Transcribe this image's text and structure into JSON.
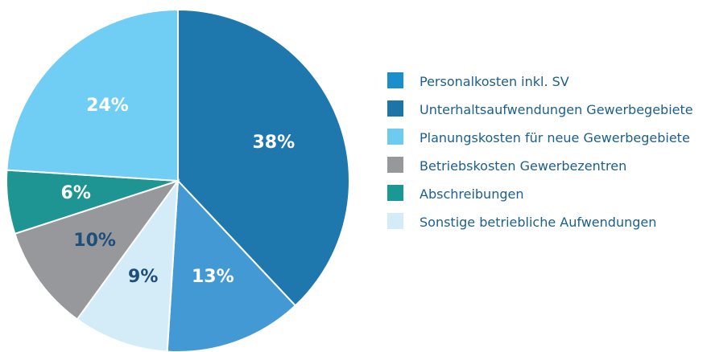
{
  "chart_data": {
    "type": "pie",
    "categories": [
      "Unterhaltsaufwendungen Gewerbegebiete",
      "Personalkosten inkl. SV",
      "Sonstige betriebliche Aufwendungen",
      "Betriebskosten Gewerbezentren",
      "Abschreibungen",
      "Planungskosten für neue Gewerbegebiete"
    ],
    "values": [
      38,
      13,
      9,
      10,
      6,
      24
    ],
    "value_labels": [
      "38%",
      "13%",
      "9%",
      "10%",
      "6%",
      "24%"
    ],
    "colors": [
      "#1f78ad",
      "#4399d4",
      "#d3ecf8",
      "#97989b",
      "#1f9593",
      "#70cdf4"
    ],
    "legend_colors": [
      "#1d74a8",
      "#1a8fc9",
      "#d3ecf8",
      "#97989b",
      "#1a9896",
      "#6dcbf0"
    ],
    "label_colors": [
      "#ffffff",
      "#ffffff",
      "#1d4f7a",
      "#1d4f7a",
      "#ffffff",
      "#ffffff"
    ],
    "legend": "right"
  }
}
